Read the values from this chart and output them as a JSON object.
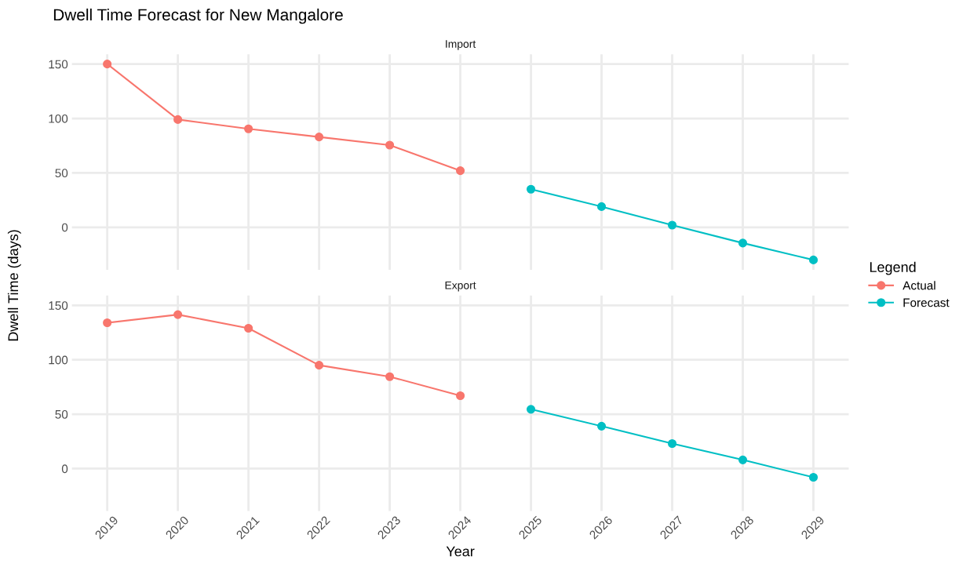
{
  "chart_data": [
    {
      "type": "line",
      "title": "Dwell Time Forecast for New Mangalore",
      "subtitle": "Import",
      "ylabel": "Dwell Time (days)",
      "legend_title": "Legend",
      "legend": "right",
      "grid": true,
      "marker": "circle",
      "line_style": "solid",
      "tick_labels": "y",
      "xlim": [
        2018.5,
        2029.5
      ],
      "xticks": [
        2019,
        2020,
        2021,
        2022,
        2023,
        2024,
        2025,
        2026,
        2027,
        2028,
        2029
      ],
      "ylim": [
        -39,
        159
      ],
      "yticks": [
        0,
        50,
        100,
        150
      ],
      "series": [
        {
          "name": "Actual",
          "color": "#f8766d",
          "x": [
            2019,
            2020,
            2021,
            2022,
            2023,
            2024
          ],
          "values": [
            150,
            99,
            90.5,
            83,
            75.5,
            52
          ]
        },
        {
          "name": "Forecast",
          "color": "#00bfc4",
          "x": [
            2025,
            2026,
            2027,
            2028,
            2029
          ],
          "values": [
            35,
            19,
            2,
            -14.5,
            -30
          ]
        }
      ]
    },
    {
      "type": "line",
      "subtitle": "Export",
      "xlabel": "Year",
      "grid": true,
      "marker": "circle",
      "line_style": "solid",
      "xlim": [
        2018.5,
        2029.5
      ],
      "xticks": [
        2019,
        2020,
        2021,
        2022,
        2023,
        2024,
        2025,
        2026,
        2027,
        2028,
        2029
      ],
      "ylim": [
        -39,
        159
      ],
      "yticks": [
        0,
        50,
        100,
        150
      ],
      "series": [
        {
          "color": "#f8766d",
          "x": [
            2019,
            2020,
            2021,
            2022,
            2023,
            2024
          ],
          "values": [
            134,
            141.5,
            129,
            95,
            84.5,
            67
          ]
        },
        {
          "color": "#00bfc4",
          "x": [
            2025,
            2026,
            2027,
            2028,
            2029
          ],
          "values": [
            54.5,
            39,
            23,
            8,
            -8
          ]
        }
      ]
    }
  ]
}
